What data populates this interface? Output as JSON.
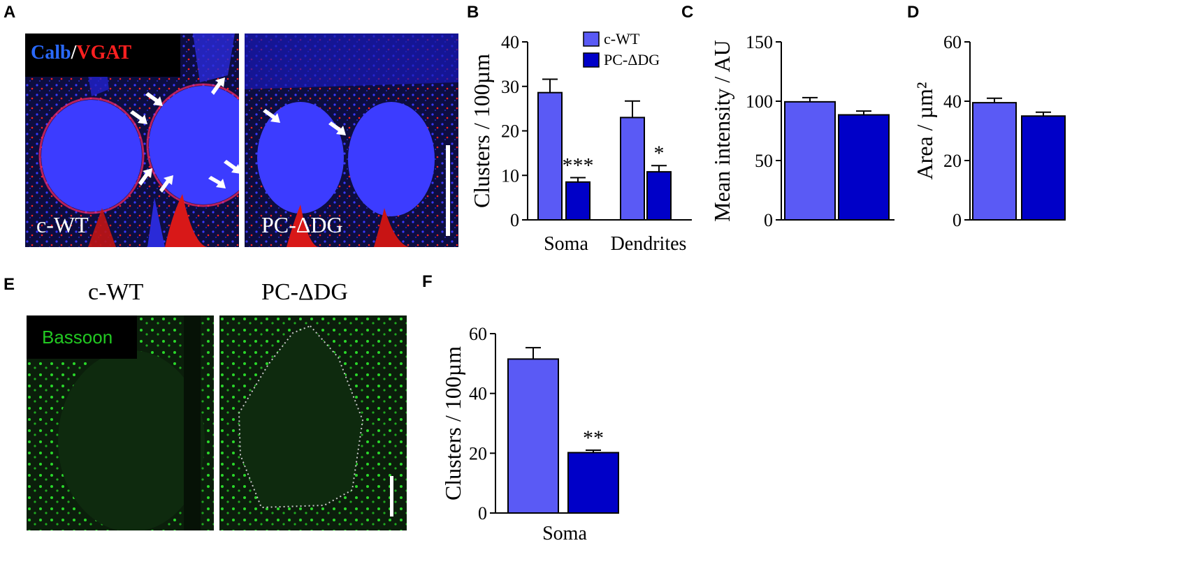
{
  "panels": {
    "A": {
      "letter": "A",
      "marker_calb": "Calb",
      "marker_sep": "/",
      "marker_vgat": "VGAT",
      "left_label": "c-WT",
      "right_label": "PC-ΔDG"
    },
    "E": {
      "letter": "E",
      "title_left": "c-WT",
      "title_right": "PC-ΔDG",
      "marker": "Bassoon"
    }
  },
  "colors": {
    "cwt_bar": "#5a5af5",
    "pcdg_bar": "#0000c8",
    "calb_blue": "#2a2aff",
    "vgat_red": "#ff2020",
    "bassoon_green": "#22c822"
  },
  "chart_data": [
    {
      "id": "B",
      "letter": "B",
      "type": "bar",
      "categories": [
        "Soma",
        "Dendrites"
      ],
      "series": [
        {
          "name": "c-WT",
          "values": [
            28.6,
            23.0
          ],
          "errors": [
            3.0,
            3.7
          ]
        },
        {
          "name": "PC-ΔDG",
          "values": [
            8.5,
            10.8
          ],
          "errors": [
            1.0,
            1.4
          ]
        }
      ],
      "annotations": [
        "***",
        "*"
      ],
      "ylabel": "Clusters / 100µm",
      "xlabel": "",
      "ylim": [
        0,
        40
      ],
      "yticks": [
        0,
        10,
        20,
        30,
        40
      ],
      "legend": "top-right",
      "grid": false
    },
    {
      "id": "C",
      "letter": "C",
      "type": "bar",
      "categories": [
        "c-WT",
        "PC-ΔDG"
      ],
      "values": [
        99.5,
        88.5
      ],
      "errors": [
        3.5,
        3.2
      ],
      "ylabel": "Mean intensity  / AU",
      "ylim": [
        0,
        150
      ],
      "yticks": [
        0,
        50,
        100,
        150
      ],
      "grid": false
    },
    {
      "id": "D",
      "letter": "D",
      "type": "bar",
      "categories": [
        "c-WT",
        "PC-ΔDG"
      ],
      "values": [
        39.5,
        35.0
      ],
      "errors": [
        1.5,
        1.3
      ],
      "ylabel": "Area / µm²",
      "ylim": [
        0,
        60
      ],
      "yticks": [
        0,
        20,
        40,
        60
      ],
      "grid": false
    },
    {
      "id": "F",
      "letter": "F",
      "type": "bar",
      "categories": [
        "c-WT",
        "PC-ΔDG"
      ],
      "values": [
        51.5,
        20.2
      ],
      "errors": [
        3.8,
        0.8
      ],
      "annotations": [
        "",
        "**"
      ],
      "ylabel": "Clusters / 100µm",
      "xlabel": "Soma",
      "ylim": [
        0,
        60
      ],
      "yticks": [
        0,
        20,
        40,
        60
      ],
      "grid": false
    }
  ]
}
